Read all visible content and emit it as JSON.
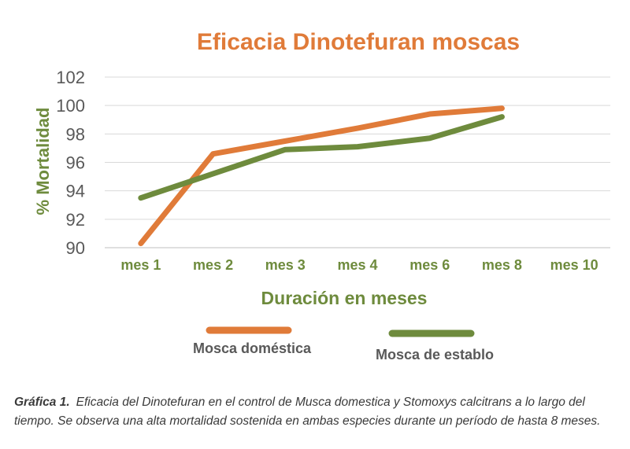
{
  "chart_data": {
    "type": "line",
    "title": "Eficacia Dinotefuran moscas",
    "xlabel": "Duración en meses",
    "ylabel": "% Mortalidad",
    "categories": [
      "mes 1",
      "mes 2",
      "mes 3",
      "mes 4",
      "mes 6",
      "mes 8",
      "mes 10"
    ],
    "ylim": [
      90,
      102
    ],
    "yticks": [
      "90",
      "92",
      "94",
      "96",
      "98",
      "100",
      "102"
    ],
    "grid": true,
    "legend_position": "bottom",
    "series": [
      {
        "name": "Mosca doméstica",
        "color": "#e07b39",
        "values": [
          90.3,
          96.6,
          97.5,
          98.4,
          99.4,
          99.8,
          null
        ]
      },
      {
        "name": "Mosca de establo",
        "color": "#6e8b3d",
        "values": [
          93.5,
          95.2,
          96.9,
          97.1,
          97.7,
          99.2,
          null
        ]
      }
    ],
    "colors": {
      "title": "#e07b39",
      "axis_text": "#6e8b3d",
      "legend_text": "#595959",
      "grid": "#d9d9d9"
    }
  },
  "caption": {
    "label": "Gráfica 1.",
    "text": "Eficacia del Dinotefuran en el control de Musca domestica y Stomoxys calcitrans a lo largo del tiempo. Se observa una alta mortalidad sostenida en ambas especies durante un período de hasta 8 meses."
  }
}
